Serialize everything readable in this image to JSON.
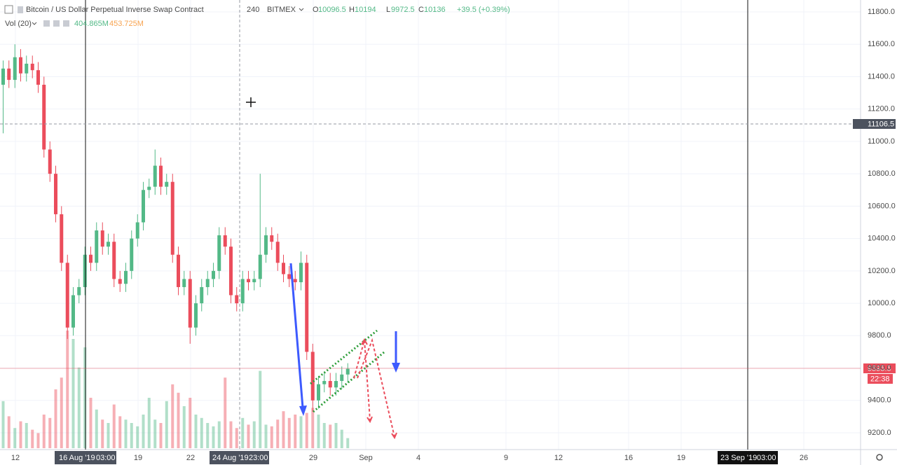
{
  "chart_data": {
    "type": "candlestick",
    "title": "Bitcoin / US Dollar Perpetual Inverse Swap Contract",
    "interval": "240",
    "exchange": "BITMEX",
    "ohlc_legend": {
      "open_label": "O",
      "open": 10096.5,
      "high_label": "H",
      "high": 10194.0,
      "low_label": "L",
      "low": 9972.5,
      "close_label": "C",
      "close": 10136.0,
      "change": "+39.5 (+0.39%)"
    },
    "volume_label": "Vol (20)",
    "volume_legend": [
      "404.865M",
      "453.725M"
    ],
    "up_color": "#53b987",
    "down_color": "#eb4d5c",
    "x": [
      11.3,
      11.63,
      11.97,
      12.3,
      12.63,
      12.97,
      13.3,
      13.63,
      13.97,
      14.3,
      14.63,
      14.97,
      15.3,
      15.63,
      15.97,
      16.3,
      16.63,
      16.97,
      17.3,
      17.63,
      17.97,
      18.3,
      18.63,
      18.97,
      19.3,
      19.63,
      19.97,
      20.3,
      20.63,
      20.97,
      21.3,
      21.63,
      21.97,
      22.3,
      22.63,
      22.97,
      23.3,
      23.63,
      23.97,
      24.3,
      24.63,
      24.97,
      25.3,
      25.63,
      25.97,
      26.3,
      26.63,
      26.97,
      27.3,
      27.63,
      27.97,
      28.3,
      28.63,
      28.97,
      29.3,
      29.63,
      29.97,
      30.3,
      30.63,
      30.97
    ],
    "open": [
      11350,
      11450,
      11380,
      11520,
      11420,
      11480,
      11440,
      11350,
      10950,
      10800,
      10550,
      10250,
      9850,
      10050,
      10100,
      10300,
      10250,
      10450,
      10350,
      10380,
      10150,
      10120,
      10200,
      10400,
      10500,
      10700,
      10720,
      10850,
      10720,
      10750,
      10300,
      10100,
      10150,
      9850,
      10000,
      10100,
      10150,
      10200,
      10420,
      10350,
      10050,
      10000,
      10150,
      10130,
      10150,
      10300,
      10420,
      10380,
      10250,
      10180,
      10150,
      10130,
      10250,
      9700,
      9400,
      9500,
      9520,
      9480,
      9520,
      9560
    ],
    "high": [
      11500,
      11500,
      11600,
      11570,
      11530,
      11530,
      11490,
      11400,
      11000,
      10850,
      10600,
      10300,
      10100,
      10150,
      10350,
      10350,
      10500,
      10500,
      10430,
      10430,
      10200,
      10250,
      10450,
      10550,
      10750,
      10770,
      10950,
      10900,
      10800,
      10800,
      10350,
      10200,
      10200,
      10050,
      10150,
      10200,
      10250,
      10470,
      10470,
      10400,
      10100,
      10200,
      10200,
      10200,
      10800,
      10470,
      10470,
      10430,
      10300,
      10230,
      10200,
      10320,
      10300,
      9750,
      9550,
      9570,
      9570,
      9570,
      9610,
      9630
    ],
    "low": [
      11050,
      11330,
      11330,
      11370,
      11370,
      11390,
      11300,
      10900,
      10750,
      10500,
      10200,
      9780,
      9800,
      10000,
      10050,
      10200,
      10200,
      10300,
      10300,
      10100,
      10070,
      10070,
      10150,
      10350,
      10450,
      10650,
      10670,
      10670,
      10670,
      10250,
      10050,
      10050,
      9750,
      9800,
      9950,
      10050,
      10100,
      10150,
      10300,
      10000,
      9950,
      9950,
      10080,
      10080,
      10100,
      10250,
      10330,
      10200,
      10130,
      10100,
      10080,
      10080,
      9650,
      9330,
      9350,
      9450,
      9430,
      9430,
      9470,
      9510
    ],
    "close": [
      11450,
      11380,
      11520,
      11420,
      11480,
      11440,
      11350,
      10950,
      10800,
      10550,
      10250,
      9850,
      10050,
      10100,
      10300,
      10250,
      10450,
      10350,
      10380,
      10150,
      10120,
      10200,
      10400,
      10500,
      10700,
      10720,
      10850,
      10720,
      10750,
      10300,
      10100,
      10150,
      9850,
      10000,
      10100,
      10150,
      10200,
      10420,
      10350,
      10050,
      10000,
      10150,
      10130,
      10150,
      10300,
      10420,
      10380,
      10250,
      10180,
      10150,
      10130,
      10250,
      9700,
      9400,
      9500,
      9520,
      9480,
      9520,
      9560,
      9595.5
    ],
    "volume": [
      280,
      190,
      120,
      160,
      150,
      110,
      90,
      200,
      180,
      350,
      420,
      700,
      650,
      480,
      600,
      300,
      230,
      170,
      150,
      260,
      190,
      170,
      150,
      130,
      200,
      300,
      170,
      150,
      280,
      380,
      330,
      250,
      300,
      200,
      180,
      150,
      130,
      160,
      420,
      160,
      120,
      180,
      140,
      160,
      460,
      140,
      130,
      170,
      220,
      180,
      200,
      190,
      210,
      240,
      200,
      150,
      140,
      150,
      110,
      60
    ],
    "xlim": [
      11.12,
      60.24
    ],
    "xticks": [
      12,
      19,
      22,
      29,
      {
        "value": 32,
        "label": "Sep"
      },
      {
        "value": 35,
        "label": "4"
      },
      {
        "value": 40,
        "label": "9"
      },
      {
        "value": 43,
        "label": "12"
      },
      {
        "value": 47,
        "label": "16"
      },
      {
        "value": 50,
        "label": "19"
      },
      {
        "value": 57,
        "label": "26"
      }
    ],
    "ylim": [
      9096.2,
      11873.5
    ],
    "yticks": [
      {
        "value": 9200,
        "label": "9200.0"
      },
      {
        "value": 9400,
        "label": "9400.0"
      },
      {
        "value": 9600,
        "label": "9600.0"
      },
      {
        "value": 9800,
        "label": "9800.0"
      },
      {
        "value": 10000,
        "label": "10000.0"
      },
      {
        "value": 10200,
        "label": "10200.0"
      },
      {
        "value": 10400,
        "label": "10400.0"
      },
      {
        "value": 10600,
        "label": "10600.0"
      },
      {
        "value": 10800,
        "label": "10800.0"
      },
      {
        "value": 11000,
        "label": "11000.0"
      },
      {
        "value": 11200,
        "label": "11200.0"
      },
      {
        "value": 11400,
        "label": "11400.0"
      },
      {
        "value": 11600,
        "label": "11600.0"
      },
      {
        "value": 11800,
        "label": "11800.0"
      }
    ],
    "vlim": [
      0,
      1000
    ],
    "grid": true,
    "crosshair_price": 11106.5,
    "countdown": "22:38",
    "time_markers": [
      [
        "16 Aug '19",
        "03:00"
      ],
      [
        "24 Aug '19",
        "23:00"
      ],
      [
        "23 Sep '19",
        "03:00"
      ]
    ]
  }
}
